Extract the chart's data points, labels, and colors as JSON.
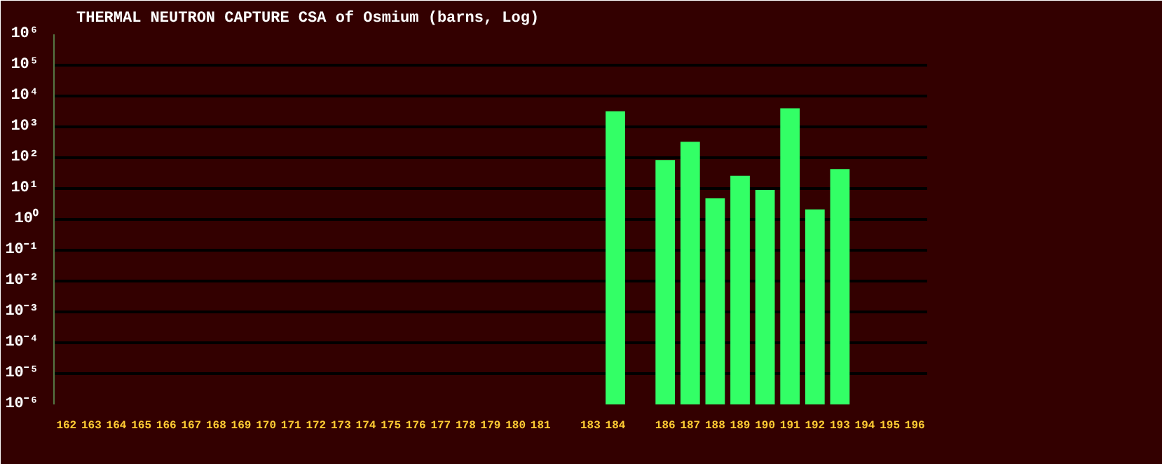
{
  "chart_data": {
    "type": "bar",
    "title": "THERMAL NEUTRON CAPTURE CSA of Osmium (barns, Log)",
    "categories": [
      "162",
      "163",
      "164",
      "165",
      "166",
      "167",
      "168",
      "169",
      "170",
      "171",
      "172",
      "173",
      "174",
      "175",
      "176",
      "177",
      "178",
      "179",
      "180",
      "181",
      null,
      "183",
      "184",
      null,
      "186",
      "187",
      "188",
      "189",
      "190",
      "191",
      "192",
      "193",
      "194",
      "195",
      "196"
    ],
    "series": [
      {
        "color": "#33ff66",
        "values": [
          null,
          null,
          null,
          null,
          null,
          null,
          null,
          null,
          null,
          null,
          null,
          null,
          null,
          null,
          null,
          null,
          null,
          null,
          null,
          null,
          null,
          null,
          3200,
          null,
          84,
          330,
          4.8,
          26,
          9,
          4000,
          2.1,
          43,
          null,
          null,
          null
        ]
      }
    ],
    "log": true,
    "grid": "y",
    "ylim": [
      1e-06,
      1000000
    ],
    "yticks": [
      {
        "value": 1e-06,
        "label": "10⁻⁶"
      },
      {
        "value": 1e-05,
        "label": "10⁻⁵"
      },
      {
        "value": 0.0001,
        "label": "10⁻⁴"
      },
      {
        "value": 0.001,
        "label": "10⁻³"
      },
      {
        "value": 0.01,
        "label": "10⁻²"
      },
      {
        "value": 0.1,
        "label": "10⁻¹"
      },
      {
        "value": 1,
        "label": "10⁰"
      },
      {
        "value": 10,
        "label": "10¹"
      },
      {
        "value": 100,
        "label": "10²"
      },
      {
        "value": 1000,
        "label": "10³"
      },
      {
        "value": 10000,
        "label": "10⁴"
      },
      {
        "value": 100000,
        "label": "10⁵"
      },
      {
        "value": 1000000,
        "label": "10⁶"
      }
    ]
  }
}
